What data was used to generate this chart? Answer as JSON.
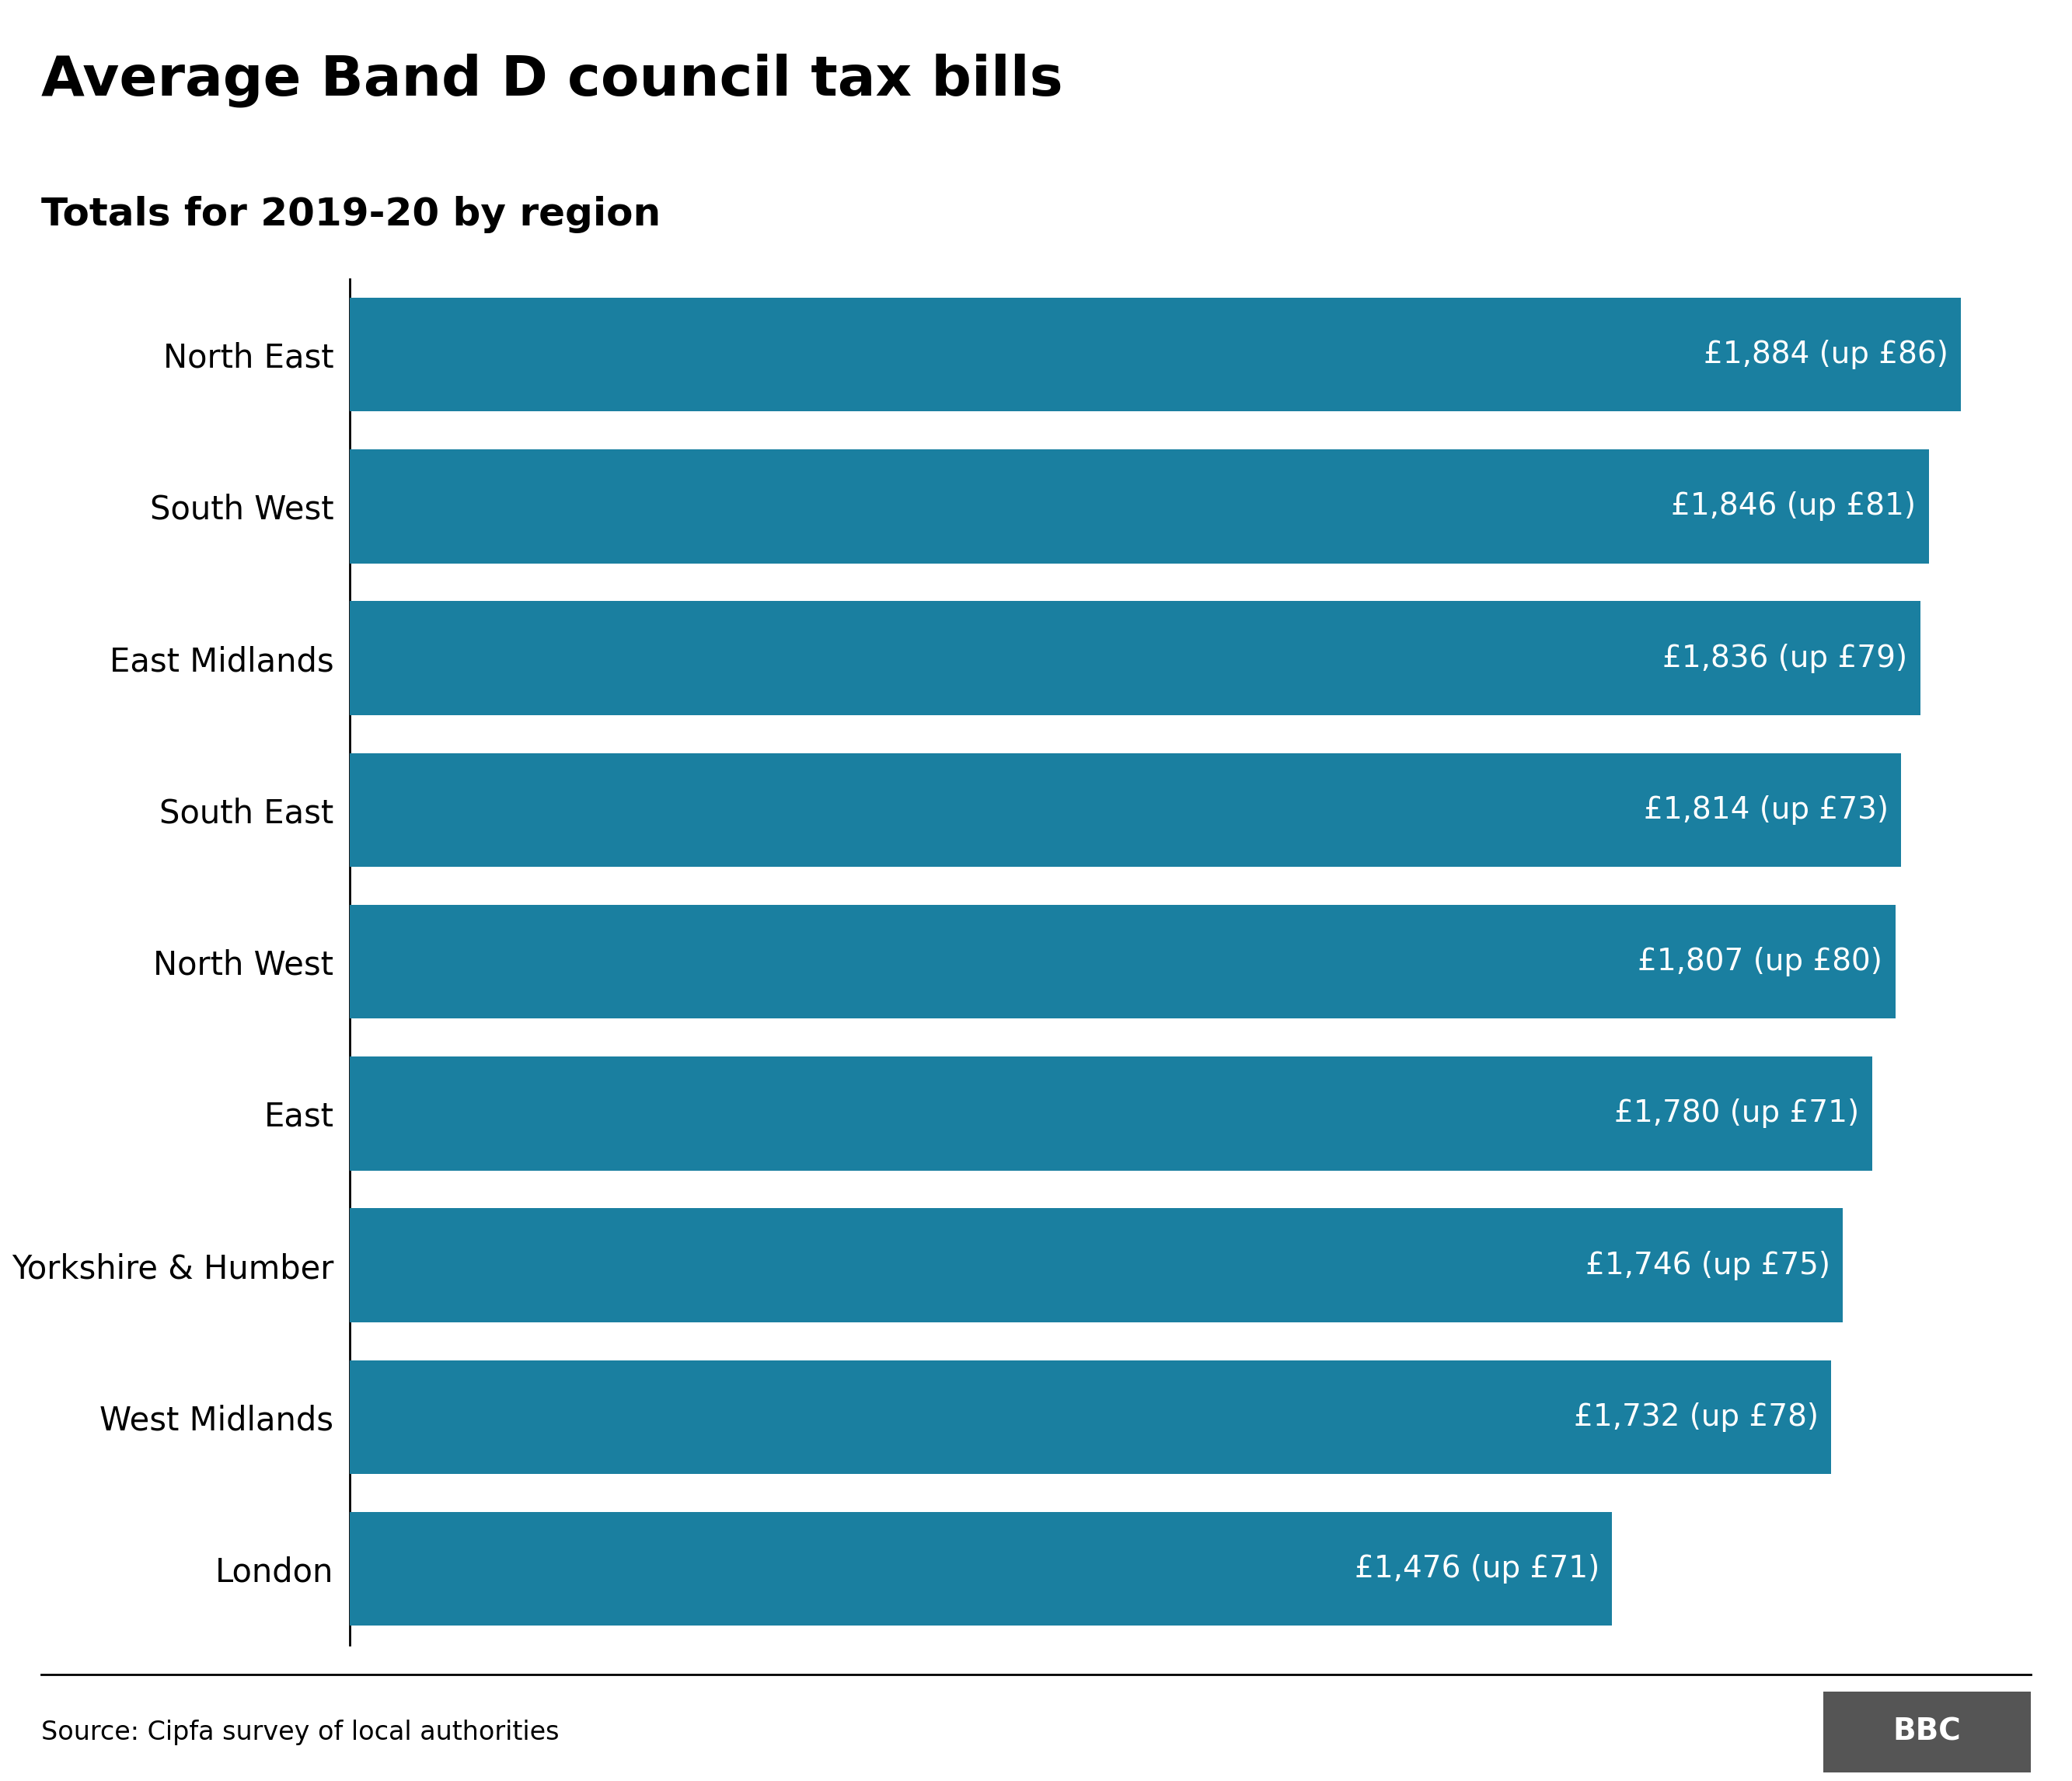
{
  "title": "Average Band D council tax bills",
  "subtitle": "Totals for 2019-20 by region",
  "source": "Source: Cipfa survey of local authorities",
  "categories": [
    "North East",
    "South West",
    "East Midlands",
    "South East",
    "North West",
    "East",
    "Yorkshire & Humber",
    "West Midlands",
    "London"
  ],
  "values": [
    1884,
    1846,
    1836,
    1814,
    1807,
    1780,
    1746,
    1732,
    1476
  ],
  "labels": [
    "£1,884 (up £86)",
    "£1,846 (up £81)",
    "£1,836 (up £79)",
    "£1,814 (up £73)",
    "£1,807 (up £80)",
    "£1,780 (up £71)",
    "£1,746 (up £75)",
    "£1,732 (up £78)",
    "£1,476 (up £71)"
  ],
  "bar_color": "#1a7fa0",
  "background_color": "#ffffff",
  "text_color": "#ffffff",
  "title_color": "#000000",
  "subtitle_color": "#000000",
  "source_color": "#000000",
  "title_fontsize": 52,
  "subtitle_fontsize": 36,
  "label_fontsize": 28,
  "ytick_fontsize": 30,
  "source_fontsize": 24,
  "xlim": [
    0,
    2000
  ],
  "bar_height": 0.75,
  "bbc_logo_color": "#555555"
}
